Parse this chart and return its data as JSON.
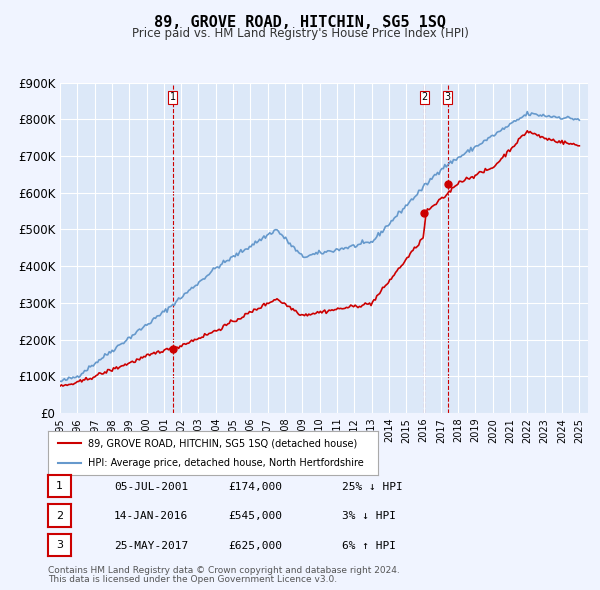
{
  "title": "89, GROVE ROAD, HITCHIN, SG5 1SQ",
  "subtitle": "Price paid vs. HM Land Registry's House Price Index (HPI)",
  "ylim": [
    0,
    900000
  ],
  "yticks": [
    0,
    100000,
    200000,
    300000,
    400000,
    500000,
    600000,
    700000,
    800000,
    900000
  ],
  "ytick_labels": [
    "£0",
    "£100K",
    "£200K",
    "£300K",
    "£400K",
    "£500K",
    "£600K",
    "£700K",
    "£800K",
    "£900K"
  ],
  "background_color": "#f0f4ff",
  "plot_bg_color": "#dce8f8",
  "grid_color": "#ffffff",
  "hpi_color": "#6699cc",
  "price_color": "#cc0000",
  "vline_color": "#cc0000",
  "sale_marker_color": "#cc0000",
  "transactions": [
    {
      "date_num": 2001.51,
      "price": 174000,
      "label": "1"
    },
    {
      "date_num": 2016.04,
      "price": 545000,
      "label": "2"
    },
    {
      "date_num": 2017.4,
      "price": 625000,
      "label": "3"
    }
  ],
  "legend_property_label": "89, GROVE ROAD, HITCHIN, SG5 1SQ (detached house)",
  "legend_hpi_label": "HPI: Average price, detached house, North Hertfordshire",
  "footer1": "Contains HM Land Registry data © Crown copyright and database right 2024.",
  "footer2": "This data is licensed under the Open Government Licence v3.0.",
  "table_rows": [
    {
      "num": "1",
      "date": "05-JUL-2001",
      "price": "£174,000",
      "hpi": "25% ↓ HPI"
    },
    {
      "num": "2",
      "date": "14-JAN-2016",
      "price": "£545,000",
      "hpi": "3% ↓ HPI"
    },
    {
      "num": "3",
      "date": "25-MAY-2017",
      "price": "£625,000",
      "hpi": "6% ↑ HPI"
    }
  ]
}
